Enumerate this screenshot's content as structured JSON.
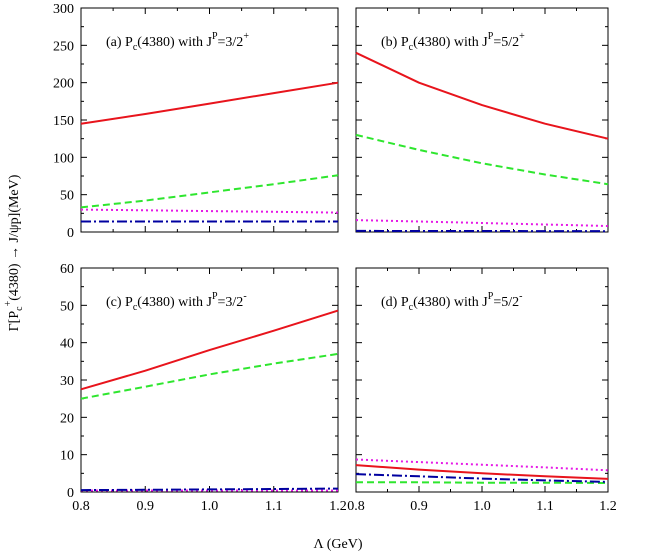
{
  "figure": {
    "xlabel": "Λ (GeV)",
    "ylabel": {
      "prefix": "Γ[P",
      "sub": "c",
      "sup": "+",
      "suffix": "(4380) → J/ψp](MeV)"
    }
  },
  "chart_data": [
    {
      "type": "line",
      "panel": "(a)",
      "title": {
        "main": "P",
        "sub": "c",
        "mid": "(4380) with J",
        "sup": "P",
        "tail": "=3/2",
        "sup2": "+"
      },
      "xlim": [
        0.8,
        1.2
      ],
      "ylim": [
        0,
        300
      ],
      "x_ticks": [
        "0.8",
        "0.9",
        "1.0",
        "1.1",
        "1.2"
      ],
      "y_ticks": [
        "0",
        "50",
        "100",
        "150",
        "200",
        "250",
        "300"
      ],
      "x": [
        0.8,
        0.9,
        1.0,
        1.1,
        1.2
      ],
      "series": [
        {
          "color": "#e8141c",
          "style": "solid",
          "values": [
            145,
            158,
            172,
            186,
            200
          ]
        },
        {
          "color": "#2ee62e",
          "style": "dashed",
          "values": [
            33,
            42,
            53,
            64,
            76
          ]
        },
        {
          "color": "#e619e6",
          "style": "dotted",
          "values": [
            30,
            29,
            28,
            27,
            26
          ]
        },
        {
          "color": "#0000a0",
          "style": "dashdot",
          "values": [
            14,
            14,
            14,
            14,
            14
          ]
        }
      ]
    },
    {
      "type": "line",
      "panel": "(b)",
      "title": {
        "main": "P",
        "sub": "c",
        "mid": "(4380) with J",
        "sup": "P",
        "tail": "=5/2",
        "sup2": "+"
      },
      "xlim": [
        0.8,
        1.2
      ],
      "ylim": [
        0,
        300
      ],
      "x_ticks": [
        "0.8",
        "0.9",
        "1.0",
        "1.1",
        "1.2"
      ],
      "y_ticks": [],
      "x": [
        0.8,
        0.9,
        1.0,
        1.1,
        1.2
      ],
      "series": [
        {
          "color": "#e8141c",
          "style": "solid",
          "values": [
            240,
            200,
            170,
            145,
            125
          ]
        },
        {
          "color": "#2ee62e",
          "style": "dashed",
          "values": [
            130,
            110,
            92,
            77,
            64
          ]
        },
        {
          "color": "#e619e6",
          "style": "dotted",
          "values": [
            16,
            14,
            12,
            10,
            8
          ]
        },
        {
          "color": "#0000a0",
          "style": "dashdot",
          "values": [
            1.5,
            1.4,
            1.3,
            1.2,
            1.1
          ]
        }
      ]
    },
    {
      "type": "line",
      "panel": "(c)",
      "title": {
        "main": "P",
        "sub": "c",
        "mid": "(4380) with J",
        "sup": "P",
        "tail": "=3/2",
        "sup2": "-"
      },
      "xlim": [
        0.8,
        1.2
      ],
      "ylim": [
        0,
        60
      ],
      "x_ticks": [
        "0.8",
        "0.9",
        "1.0",
        "1.1",
        "1.2"
      ],
      "y_ticks": [
        "0",
        "10",
        "20",
        "30",
        "40",
        "50",
        "60"
      ],
      "x": [
        0.8,
        0.9,
        1.0,
        1.1,
        1.2
      ],
      "series": [
        {
          "color": "#e8141c",
          "style": "solid",
          "values": [
            27.5,
            32.5,
            38,
            43.2,
            48.6
          ]
        },
        {
          "color": "#2ee62e",
          "style": "dashed",
          "values": [
            25,
            28.2,
            31.5,
            34.4,
            37
          ]
        },
        {
          "color": "#e619e6",
          "style": "dotted",
          "values": [
            0.4,
            0.4,
            0.4,
            0.4,
            0.4
          ]
        },
        {
          "color": "#0000a0",
          "style": "dashdot",
          "values": [
            0.5,
            0.6,
            0.7,
            0.8,
            0.9
          ]
        }
      ]
    },
    {
      "type": "line",
      "panel": "(d)",
      "title": {
        "main": "P",
        "sub": "c",
        "mid": "(4380) with J",
        "sup": "P",
        "tail": "=5/2",
        "sup2": "-"
      },
      "xlim": [
        0.8,
        1.2
      ],
      "ylim": [
        0,
        60
      ],
      "x_ticks": [
        "0.8",
        "0.9",
        "1.0",
        "1.1",
        "1.2"
      ],
      "y_ticks": [],
      "x": [
        0.8,
        0.9,
        1.0,
        1.1,
        1.2
      ],
      "series": [
        {
          "color": "#e8141c",
          "style": "solid",
          "values": [
            7.2,
            6.0,
            5.0,
            4.2,
            3.5
          ]
        },
        {
          "color": "#2ee62e",
          "style": "dashed",
          "values": [
            2.6,
            2.6,
            2.5,
            2.5,
            2.4
          ]
        },
        {
          "color": "#e619e6",
          "style": "dotted",
          "values": [
            8.7,
            8.0,
            7.3,
            6.6,
            5.8
          ]
        },
        {
          "color": "#0000a0",
          "style": "dashdot",
          "values": [
            4.8,
            4.2,
            3.6,
            3.1,
            2.7
          ]
        }
      ]
    }
  ]
}
